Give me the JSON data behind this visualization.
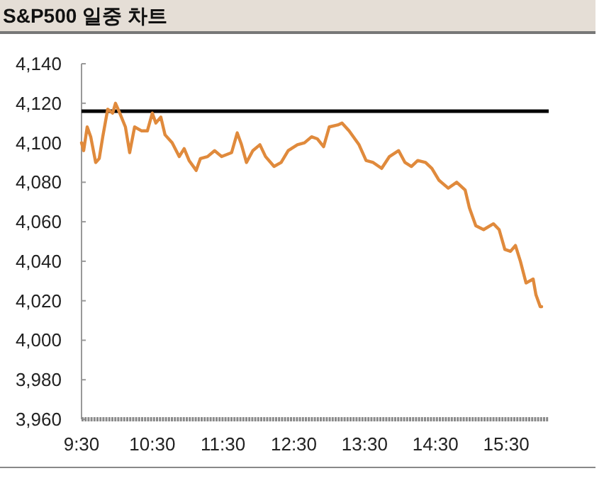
{
  "chart_data": {
    "type": "line",
    "title": "S&P500 일중 차트",
    "x": [
      9.5,
      9.53,
      9.58,
      9.63,
      9.7,
      9.75,
      9.8,
      9.87,
      9.94,
      9.98,
      10.04,
      10.12,
      10.18,
      10.25,
      10.35,
      10.43,
      10.5,
      10.55,
      10.62,
      10.68,
      10.78,
      10.88,
      10.95,
      11.02,
      11.12,
      11.18,
      11.28,
      11.38,
      11.48,
      11.62,
      11.7,
      11.76,
      11.83,
      11.92,
      12.02,
      12.1,
      12.22,
      12.32,
      12.42,
      12.55,
      12.65,
      12.75,
      12.83,
      12.92,
      13.0,
      13.12,
      13.18,
      13.28,
      13.42,
      13.52,
      13.62,
      13.74,
      13.85,
      13.98,
      14.07,
      14.16,
      14.25,
      14.36,
      14.45,
      14.55,
      14.68,
      14.8,
      14.92,
      14.98,
      15.07,
      15.18,
      15.32,
      15.4,
      15.48,
      15.56,
      15.63,
      15.7,
      15.78,
      15.88,
      15.92,
      15.98,
      16.0
    ],
    "series": [
      {
        "color": "#e08a3c",
        "values": [
          4100,
          4096,
          4108,
          4103,
          4090,
          4092,
          4103,
          4117,
          4115,
          4120,
          4115,
          4108,
          4095,
          4108,
          4106,
          4106,
          4115,
          4110,
          4113,
          4104,
          4100,
          4093,
          4097,
          4091,
          4086,
          4092,
          4093,
          4096,
          4093,
          4095,
          4105,
          4099,
          4090,
          4096,
          4099,
          4093,
          4088,
          4090,
          4096,
          4099,
          4100,
          4103,
          4102,
          4098,
          4108,
          4109,
          4110,
          4106,
          4099,
          4091,
          4090,
          4087,
          4093,
          4096,
          4090,
          4088,
          4091,
          4090,
          4087,
          4081,
          4077,
          4080,
          4076,
          4067,
          4058,
          4056,
          4059,
          4056,
          4046,
          4045,
          4048,
          4040,
          4029,
          4031,
          4023,
          4017,
          4017
        ]
      }
    ],
    "xlim": [
      9.5,
      16.1
    ],
    "xticks": [
      {
        "value": 9.5,
        "label": "9:30"
      },
      {
        "value": 10.5,
        "label": "10:30"
      },
      {
        "value": 11.5,
        "label": "11:30"
      },
      {
        "value": 12.5,
        "label": "12:30"
      },
      {
        "value": 13.5,
        "label": "13:30"
      },
      {
        "value": 14.5,
        "label": "14:30"
      },
      {
        "value": 15.5,
        "label": "15:30"
      }
    ],
    "ylim": [
      3960,
      4140
    ],
    "yticks": [
      {
        "value": 3960,
        "label": "3,960"
      },
      {
        "value": 3980,
        "label": "3,980"
      },
      {
        "value": 4000,
        "label": "4,000"
      },
      {
        "value": 4020,
        "label": "4,020"
      },
      {
        "value": 4040,
        "label": "4,040"
      },
      {
        "value": 4060,
        "label": "4,060"
      },
      {
        "value": 4080,
        "label": "4,080"
      },
      {
        "value": 4100,
        "label": "4,100"
      },
      {
        "value": 4120,
        "label": "4,120"
      },
      {
        "value": 4140,
        "label": "4,140"
      }
    ],
    "ref_lines": [
      {
        "axis": "y",
        "value": 4116,
        "color": "#000000"
      }
    ],
    "grid": false,
    "marker": "none",
    "line_style": "solid"
  }
}
